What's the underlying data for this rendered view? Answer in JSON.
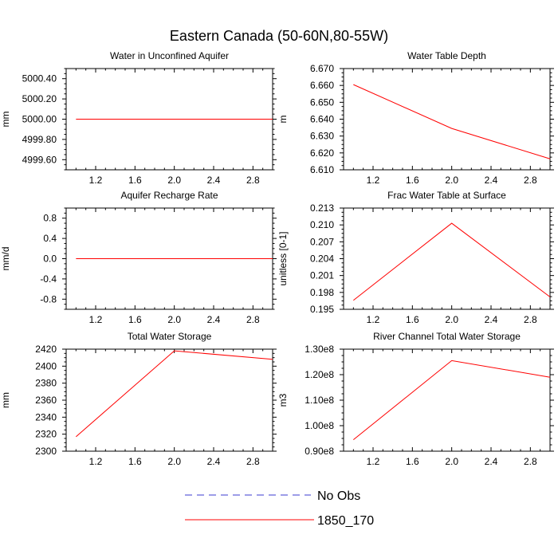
{
  "figure": {
    "title": "Eastern Canada (50-60N,80-55W)"
  },
  "colors": {
    "model": "#ff0000",
    "obs": "#3b3bd0",
    "axis": "#000000"
  },
  "legend": {
    "obs_label": "No Obs",
    "model_label": "1850_170"
  },
  "chart_data": [
    {
      "type": "line",
      "title": "Water in Unconfined Aquifer",
      "xlabel": "",
      "ylabel": "mm",
      "xlim": [
        0.9,
        3.0
      ],
      "ylim": [
        4999.5,
        5000.5
      ],
      "xticks": [
        1.2,
        1.6,
        2.0,
        2.4,
        2.8
      ],
      "xtick_labels": [
        "1.2",
        "1.6",
        "2.0",
        "2.4",
        "2.8"
      ],
      "yticks": [
        4999.6,
        4999.8,
        5000.0,
        5000.2,
        5000.4
      ],
      "ytick_labels": [
        "4999.60",
        "4999.80",
        "5000.00",
        "5000.20",
        "5000.40"
      ],
      "grid": false,
      "series": [
        {
          "name": "1850_170",
          "x": [
            1,
            2,
            3
          ],
          "values": [
            5000.0,
            5000.0,
            5000.0
          ]
        }
      ]
    },
    {
      "type": "line",
      "title": "Water Table Depth",
      "xlabel": "",
      "ylabel": "m",
      "xlim": [
        0.9,
        3.0
      ],
      "ylim": [
        6.61,
        6.67
      ],
      "xticks": [
        1.2,
        1.6,
        2.0,
        2.4,
        2.8
      ],
      "xtick_labels": [
        "1.2",
        "1.6",
        "2.0",
        "2.4",
        "2.8"
      ],
      "yticks": [
        6.61,
        6.62,
        6.63,
        6.64,
        6.65,
        6.66,
        6.67
      ],
      "ytick_labels": [
        "6.610",
        "6.620",
        "6.630",
        "6.640",
        "6.650",
        "6.660",
        "6.670"
      ],
      "grid": false,
      "series": [
        {
          "name": "1850_170",
          "x": [
            1,
            2,
            3
          ],
          "values": [
            6.6605,
            6.6345,
            6.6165
          ]
        }
      ]
    },
    {
      "type": "line",
      "title": "Aquifer Recharge Rate",
      "xlabel": "",
      "ylabel": "mm/d",
      "xlim": [
        0.9,
        3.0
      ],
      "ylim": [
        -1.0,
        1.0
      ],
      "xticks": [
        1.2,
        1.6,
        2.0,
        2.4,
        2.8
      ],
      "xtick_labels": [
        "1.2",
        "1.6",
        "2.0",
        "2.4",
        "2.8"
      ],
      "yticks": [
        -0.8,
        -0.4,
        0.0,
        0.4,
        0.8
      ],
      "ytick_labels": [
        "-0.8",
        "-0.4",
        "0.0",
        "0.4",
        "0.8"
      ],
      "grid": false,
      "series": [
        {
          "name": "1850_170",
          "x": [
            1,
            2,
            3
          ],
          "values": [
            0.0,
            0.0,
            0.0
          ]
        }
      ]
    },
    {
      "type": "line",
      "title": "Frac Water Table at Surface",
      "xlabel": "",
      "ylabel": "unitless [0-1]",
      "xlim": [
        0.9,
        3.0
      ],
      "ylim": [
        0.195,
        0.213
      ],
      "xticks": [
        1.2,
        1.6,
        2.0,
        2.4,
        2.8
      ],
      "xtick_labels": [
        "1.2",
        "1.6",
        "2.0",
        "2.4",
        "2.8"
      ],
      "yticks": [
        0.195,
        0.198,
        0.201,
        0.204,
        0.207,
        0.21,
        0.213
      ],
      "ytick_labels": [
        "0.195",
        "0.198",
        "0.201",
        "0.204",
        "0.207",
        "0.210",
        "0.213"
      ],
      "grid": false,
      "series": [
        {
          "name": "1850_170",
          "x": [
            1,
            2,
            3
          ],
          "values": [
            0.1966,
            0.2103,
            0.1972
          ]
        }
      ]
    },
    {
      "type": "line",
      "title": "Total Water Storage",
      "xlabel": "",
      "ylabel": "mm",
      "xlim": [
        0.9,
        3.0
      ],
      "ylim": [
        2300,
        2420
      ],
      "xticks": [
        1.2,
        1.6,
        2.0,
        2.4,
        2.8
      ],
      "xtick_labels": [
        "1.2",
        "1.6",
        "2.0",
        "2.4",
        "2.8"
      ],
      "yticks": [
        2300,
        2320,
        2340,
        2360,
        2380,
        2400,
        2420
      ],
      "ytick_labels": [
        "2300",
        "2320",
        "2340",
        "2360",
        "2380",
        "2400",
        "2420"
      ],
      "grid": false,
      "series": [
        {
          "name": "1850_170",
          "x": [
            1,
            2,
            3
          ],
          "values": [
            2317,
            2418,
            2408
          ]
        }
      ]
    },
    {
      "type": "line",
      "title": "River Channel Total Water Storage",
      "xlabel": "",
      "ylabel": "m3",
      "xlim": [
        0.9,
        3.0
      ],
      "ylim": [
        90000000,
        130000000
      ],
      "xticks": [
        1.2,
        1.6,
        2.0,
        2.4,
        2.8
      ],
      "xtick_labels": [
        "1.2",
        "1.6",
        "2.0",
        "2.4",
        "2.8"
      ],
      "yticks": [
        90000000,
        100000000,
        110000000,
        120000000,
        130000000
      ],
      "ytick_labels": [
        "0.90e8",
        "1.00e8",
        "1.10e8",
        "1.20e8",
        "1.30e8"
      ],
      "grid": false,
      "series": [
        {
          "name": "1850_170",
          "x": [
            1,
            2,
            3
          ],
          "values": [
            94500000,
            125500000,
            119000000
          ]
        }
      ]
    }
  ]
}
